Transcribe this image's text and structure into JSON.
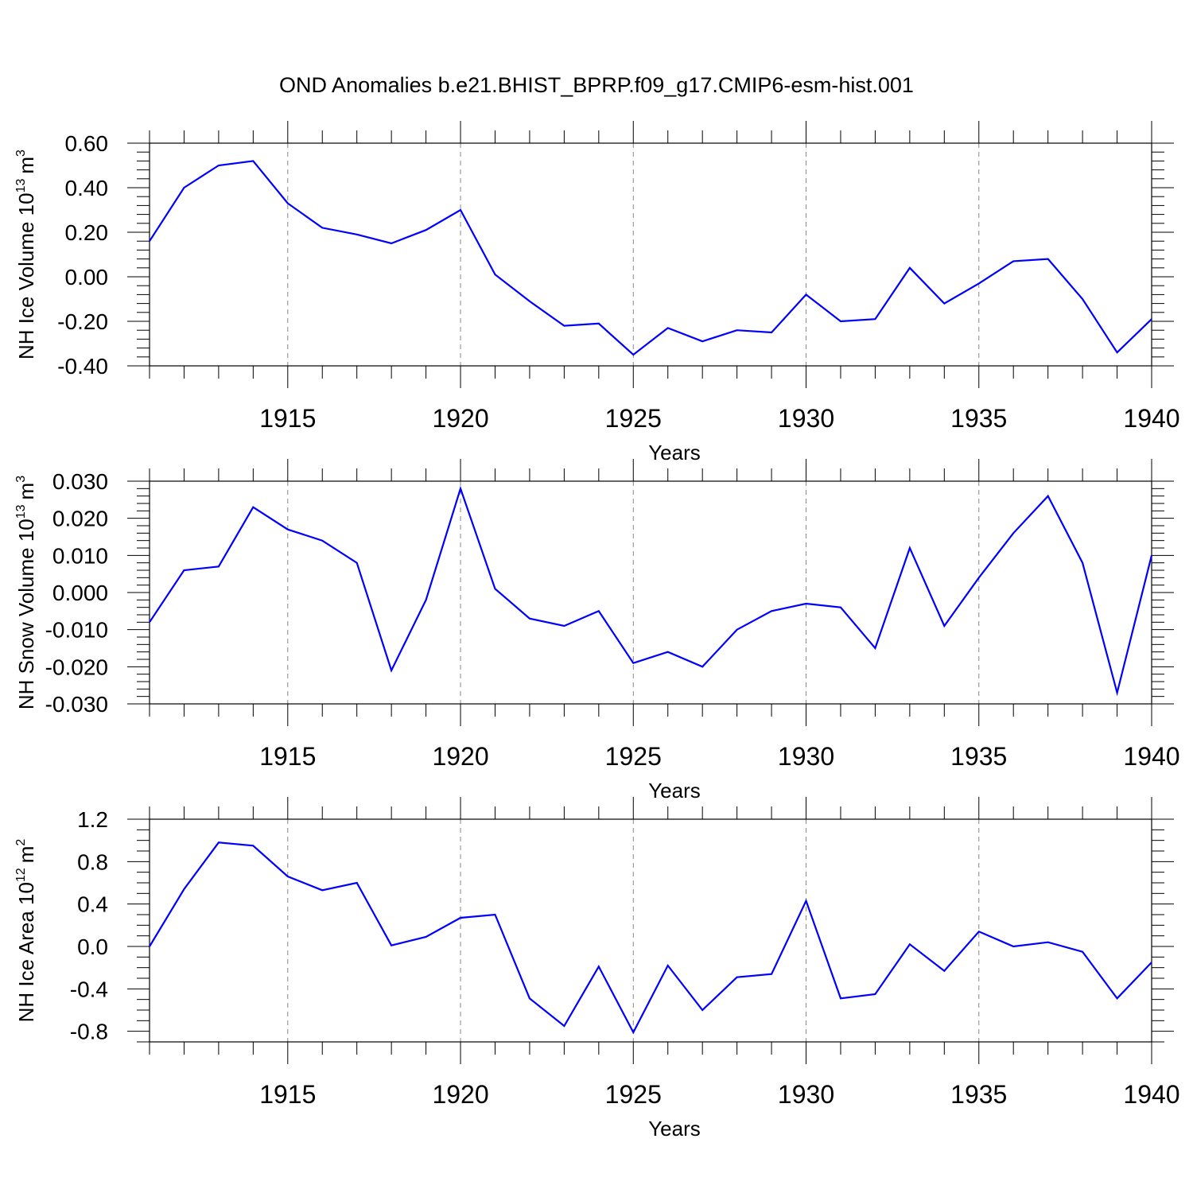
{
  "title": "OND Anomalies b.e21.BHIST_BPRP.f09_g17.CMIP6-esm-hist.001",
  "colors": {
    "series": "#0000ff",
    "grid": "#888888",
    "frame": "#000000"
  },
  "chart_data": [
    {
      "type": "line",
      "name": "NH Ice Volume",
      "ylabel": "NH Ice Volume 10",
      "ylabel_exp": "13",
      "ylabel_unit": "m",
      "ylabel_unit_exp": "3",
      "xlabel": "Years",
      "xlim": [
        1911,
        1940
      ],
      "ylim": [
        -0.4,
        0.6
      ],
      "x_ticks": [
        "1915",
        "1920",
        "1925",
        "1930",
        "1935",
        "1940"
      ],
      "y_ticks": [
        "0.60",
        "0.40",
        "0.20",
        "0.00",
        "-0.20",
        "-0.40"
      ],
      "y_tick_values": [
        0.6,
        0.4,
        0.2,
        0.0,
        -0.2,
        -0.4
      ],
      "y_minor_step": 0.04,
      "x": [
        1911,
        1912,
        1913,
        1914,
        1915,
        1916,
        1917,
        1918,
        1919,
        1920,
        1921,
        1922,
        1923,
        1924,
        1925,
        1926,
        1927,
        1928,
        1929,
        1930,
        1931,
        1932,
        1933,
        1934,
        1935,
        1936,
        1937,
        1938,
        1939,
        1940
      ],
      "values": [
        0.16,
        0.4,
        0.5,
        0.52,
        0.33,
        0.22,
        0.19,
        0.15,
        0.21,
        0.3,
        0.01,
        -0.11,
        -0.22,
        -0.21,
        -0.35,
        -0.23,
        -0.29,
        -0.24,
        -0.25,
        -0.08,
        -0.2,
        -0.19,
        0.04,
        -0.12,
        -0.03,
        0.07,
        0.08,
        -0.1,
        -0.34,
        -0.19
      ]
    },
    {
      "type": "line",
      "name": "NH Snow Volume",
      "ylabel": "NH Snow Volume 10",
      "ylabel_exp": "13",
      "ylabel_unit": "m",
      "ylabel_unit_exp": "3",
      "xlabel": "Years",
      "xlim": [
        1911,
        1940
      ],
      "ylim": [
        -0.03,
        0.03
      ],
      "x_ticks": [
        "1915",
        "1920",
        "1925",
        "1930",
        "1935",
        "1940"
      ],
      "y_ticks": [
        "0.030",
        "0.020",
        "0.010",
        "0.000",
        "-0.010",
        "-0.020",
        "-0.030"
      ],
      "y_tick_values": [
        0.03,
        0.02,
        0.01,
        0.0,
        -0.01,
        -0.02,
        -0.03
      ],
      "y_minor_step": 0.002,
      "x": [
        1911,
        1912,
        1913,
        1914,
        1915,
        1916,
        1917,
        1918,
        1919,
        1920,
        1921,
        1922,
        1923,
        1924,
        1925,
        1926,
        1927,
        1928,
        1929,
        1930,
        1931,
        1932,
        1933,
        1934,
        1935,
        1936,
        1937,
        1938,
        1939,
        1940
      ],
      "values": [
        -0.008,
        0.006,
        0.007,
        0.023,
        0.017,
        0.014,
        0.008,
        -0.021,
        -0.002,
        0.028,
        0.001,
        -0.007,
        -0.009,
        -0.005,
        -0.019,
        -0.016,
        -0.02,
        -0.01,
        -0.005,
        -0.003,
        -0.004,
        -0.015,
        0.012,
        -0.009,
        0.004,
        0.016,
        0.026,
        0.008,
        -0.027,
        0.01
      ]
    },
    {
      "type": "line",
      "name": "NH Ice Area",
      "ylabel": "NH Ice Area 10",
      "ylabel_exp": "12",
      "ylabel_unit": "m",
      "ylabel_unit_exp": "2",
      "xlabel": "Years",
      "xlim": [
        1911,
        1940
      ],
      "ylim": [
        -0.9,
        1.2
      ],
      "x_ticks": [
        "1915",
        "1920",
        "1925",
        "1930",
        "1935",
        "1940"
      ],
      "y_ticks": [
        "1.2",
        "0.8",
        "0.4",
        "0.0",
        "-0.4",
        "-0.8"
      ],
      "y_tick_values": [
        1.2,
        0.8,
        0.4,
        0.0,
        -0.4,
        -0.8
      ],
      "y_minor_step": 0.1,
      "x": [
        1911,
        1912,
        1913,
        1914,
        1915,
        1916,
        1917,
        1918,
        1919,
        1920,
        1921,
        1922,
        1923,
        1924,
        1925,
        1926,
        1927,
        1928,
        1929,
        1930,
        1931,
        1932,
        1933,
        1934,
        1935,
        1936,
        1937,
        1938,
        1939,
        1940
      ],
      "values": [
        0.0,
        0.54,
        0.98,
        0.95,
        0.66,
        0.53,
        0.6,
        0.01,
        0.09,
        0.27,
        0.3,
        -0.49,
        -0.75,
        -0.19,
        -0.81,
        -0.18,
        -0.6,
        -0.29,
        -0.26,
        0.43,
        -0.49,
        -0.45,
        0.02,
        -0.23,
        0.14,
        0.0,
        0.04,
        -0.05,
        -0.49,
        -0.15
      ]
    }
  ]
}
